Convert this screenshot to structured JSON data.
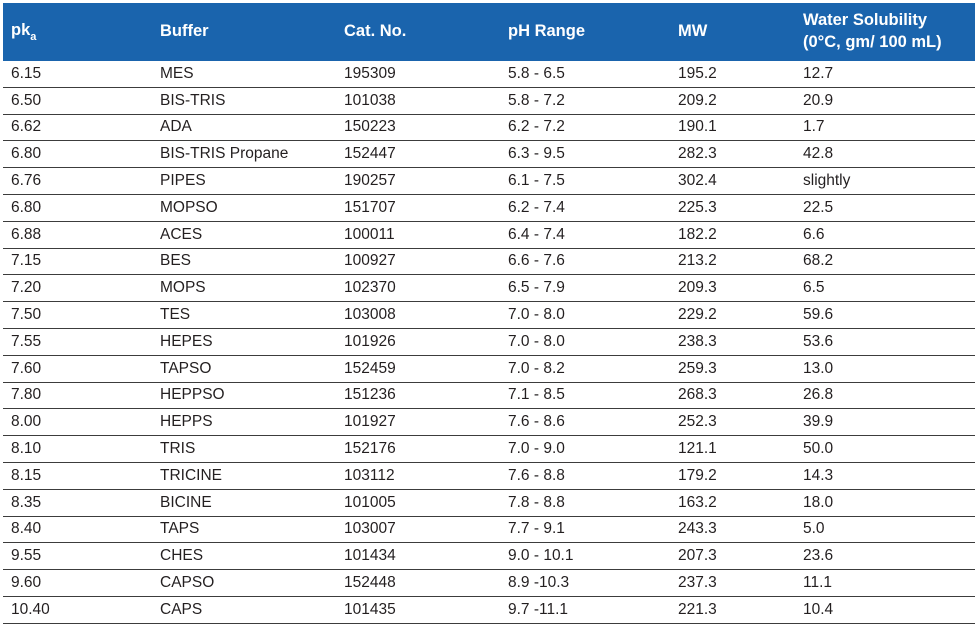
{
  "table": {
    "headers": {
      "pka_main": "pk",
      "pka_sub": "a",
      "buffer": "Buffer",
      "catno": "Cat. No.",
      "phrange": "pH Range",
      "mw": "MW",
      "solubility_line1": "Water Solubility",
      "solubility_line2": "(0°C, gm/ 100 mL)"
    },
    "rows": [
      [
        "6.15",
        "MES",
        "195309",
        "5.8 - 6.5",
        "195.2",
        "12.7"
      ],
      [
        "6.50",
        "BIS-TRIS",
        "101038",
        "5.8 - 7.2",
        "209.2",
        "20.9"
      ],
      [
        "6.62",
        "ADA",
        "150223",
        "6.2 - 7.2",
        "190.1",
        "1.7"
      ],
      [
        "6.80",
        "BIS-TRIS Propane",
        "152447",
        "6.3 - 9.5",
        "282.3",
        "42.8"
      ],
      [
        "6.76",
        "PIPES",
        "190257",
        "6.1 - 7.5",
        "302.4",
        "slightly"
      ],
      [
        "6.80",
        "MOPSO",
        "151707",
        "6.2 - 7.4",
        "225.3",
        "22.5"
      ],
      [
        "6.88",
        "ACES",
        "100011",
        "6.4 - 7.4",
        "182.2",
        "6.6"
      ],
      [
        "7.15",
        "BES",
        "100927",
        "6.6 - 7.6",
        "213.2",
        "68.2"
      ],
      [
        "7.20",
        "MOPS",
        "102370",
        "6.5 - 7.9",
        "209.3",
        "6.5"
      ],
      [
        "7.50",
        "TES",
        "103008",
        "7.0 - 8.0",
        "229.2",
        "59.6"
      ],
      [
        "7.55",
        "HEPES",
        "101926",
        "7.0 - 8.0",
        "238.3",
        "53.6"
      ],
      [
        "7.60",
        "TAPSO",
        "152459",
        "7.0 - 8.2",
        "259.3",
        "13.0"
      ],
      [
        "7.80",
        "HEPPSO",
        "151236",
        "7.1 - 8.5",
        "268.3",
        "26.8"
      ],
      [
        "8.00",
        "HEPPS",
        "101927",
        "7.6 - 8.6",
        "252.3",
        "39.9"
      ],
      [
        "8.10",
        "TRIS",
        "152176",
        "7.0 - 9.0",
        "121.1",
        "50.0"
      ],
      [
        "8.15",
        "TRICINE",
        "103112",
        "7.6 - 8.8",
        "179.2",
        "14.3"
      ],
      [
        "8.35",
        "BICINE",
        "101005",
        "7.8 - 8.8",
        "163.2",
        "18.0"
      ],
      [
        "8.40",
        "TAPS",
        "103007",
        "7.7 - 9.1",
        "243.3",
        "5.0"
      ],
      [
        "9.55",
        "CHES",
        "101434",
        "9.0 - 10.1",
        "207.3",
        "23.6"
      ],
      [
        "9.60",
        "CAPSO",
        "152448",
        "8.9 -10.3",
        "237.3",
        "11.1"
      ],
      [
        "10.40",
        "CAPS",
        "101435",
        "9.7 -11.1",
        "221.3",
        "10.4"
      ]
    ]
  },
  "colors": {
    "header_bg": "#1a64ad",
    "header_text": "#ffffff",
    "body_text": "#231f20",
    "row_divider": "#3c3c3c"
  }
}
